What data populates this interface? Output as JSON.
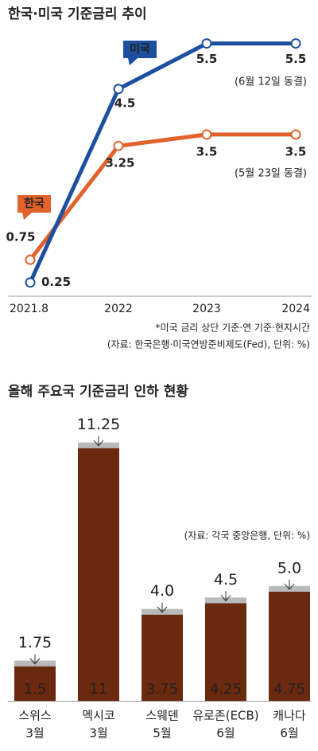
{
  "chart_data": [
    {
      "type": "line",
      "title": "한국·미국 기준금리 추이",
      "categories": [
        "2021.8",
        "2022",
        "2023",
        "2024"
      ],
      "ylim": [
        0,
        6
      ],
      "series": [
        {
          "name": "미국",
          "color": "#1d4f9f",
          "values": [
            0.25,
            4.5,
            5.5,
            5.5
          ]
        },
        {
          "name": "한국",
          "color": "#e2622b",
          "values": [
            0.75,
            3.25,
            3.5,
            3.5
          ]
        }
      ],
      "annotations": [
        "(6월 12일 동결)",
        "(5월 23일 동결)"
      ],
      "notes": [
        "*미국 금리 상단 기준·연 기준·현지시간",
        "(자료: 한국은행·미국연방준비제도(Fed), 단위: %)"
      ]
    },
    {
      "type": "bar",
      "title": "올해 주요국 기준금리 인하 현황",
      "categories": [
        [
          "스위스",
          "3월"
        ],
        [
          "멕시코",
          "3월"
        ],
        [
          "스웨덴",
          "5월"
        ],
        [
          "유로존(ECB)",
          "6월"
        ],
        [
          "캐나다",
          "6월"
        ]
      ],
      "ylim": [
        0,
        12
      ],
      "series": [
        {
          "color": "#b9babc",
          "values": [
            1.75,
            11.25,
            4.0,
            4.5,
            5.0
          ],
          "value_labels": [
            "1.75",
            "11.25",
            "4.0",
            "4.5",
            "5.0"
          ]
        },
        {
          "color": "#6b2a0f",
          "values": [
            1.5,
            11,
            3.75,
            4.25,
            4.75
          ]
        }
      ],
      "notes": [
        "(자료: 각국 중앙은행, 단위: %)"
      ]
    }
  ]
}
